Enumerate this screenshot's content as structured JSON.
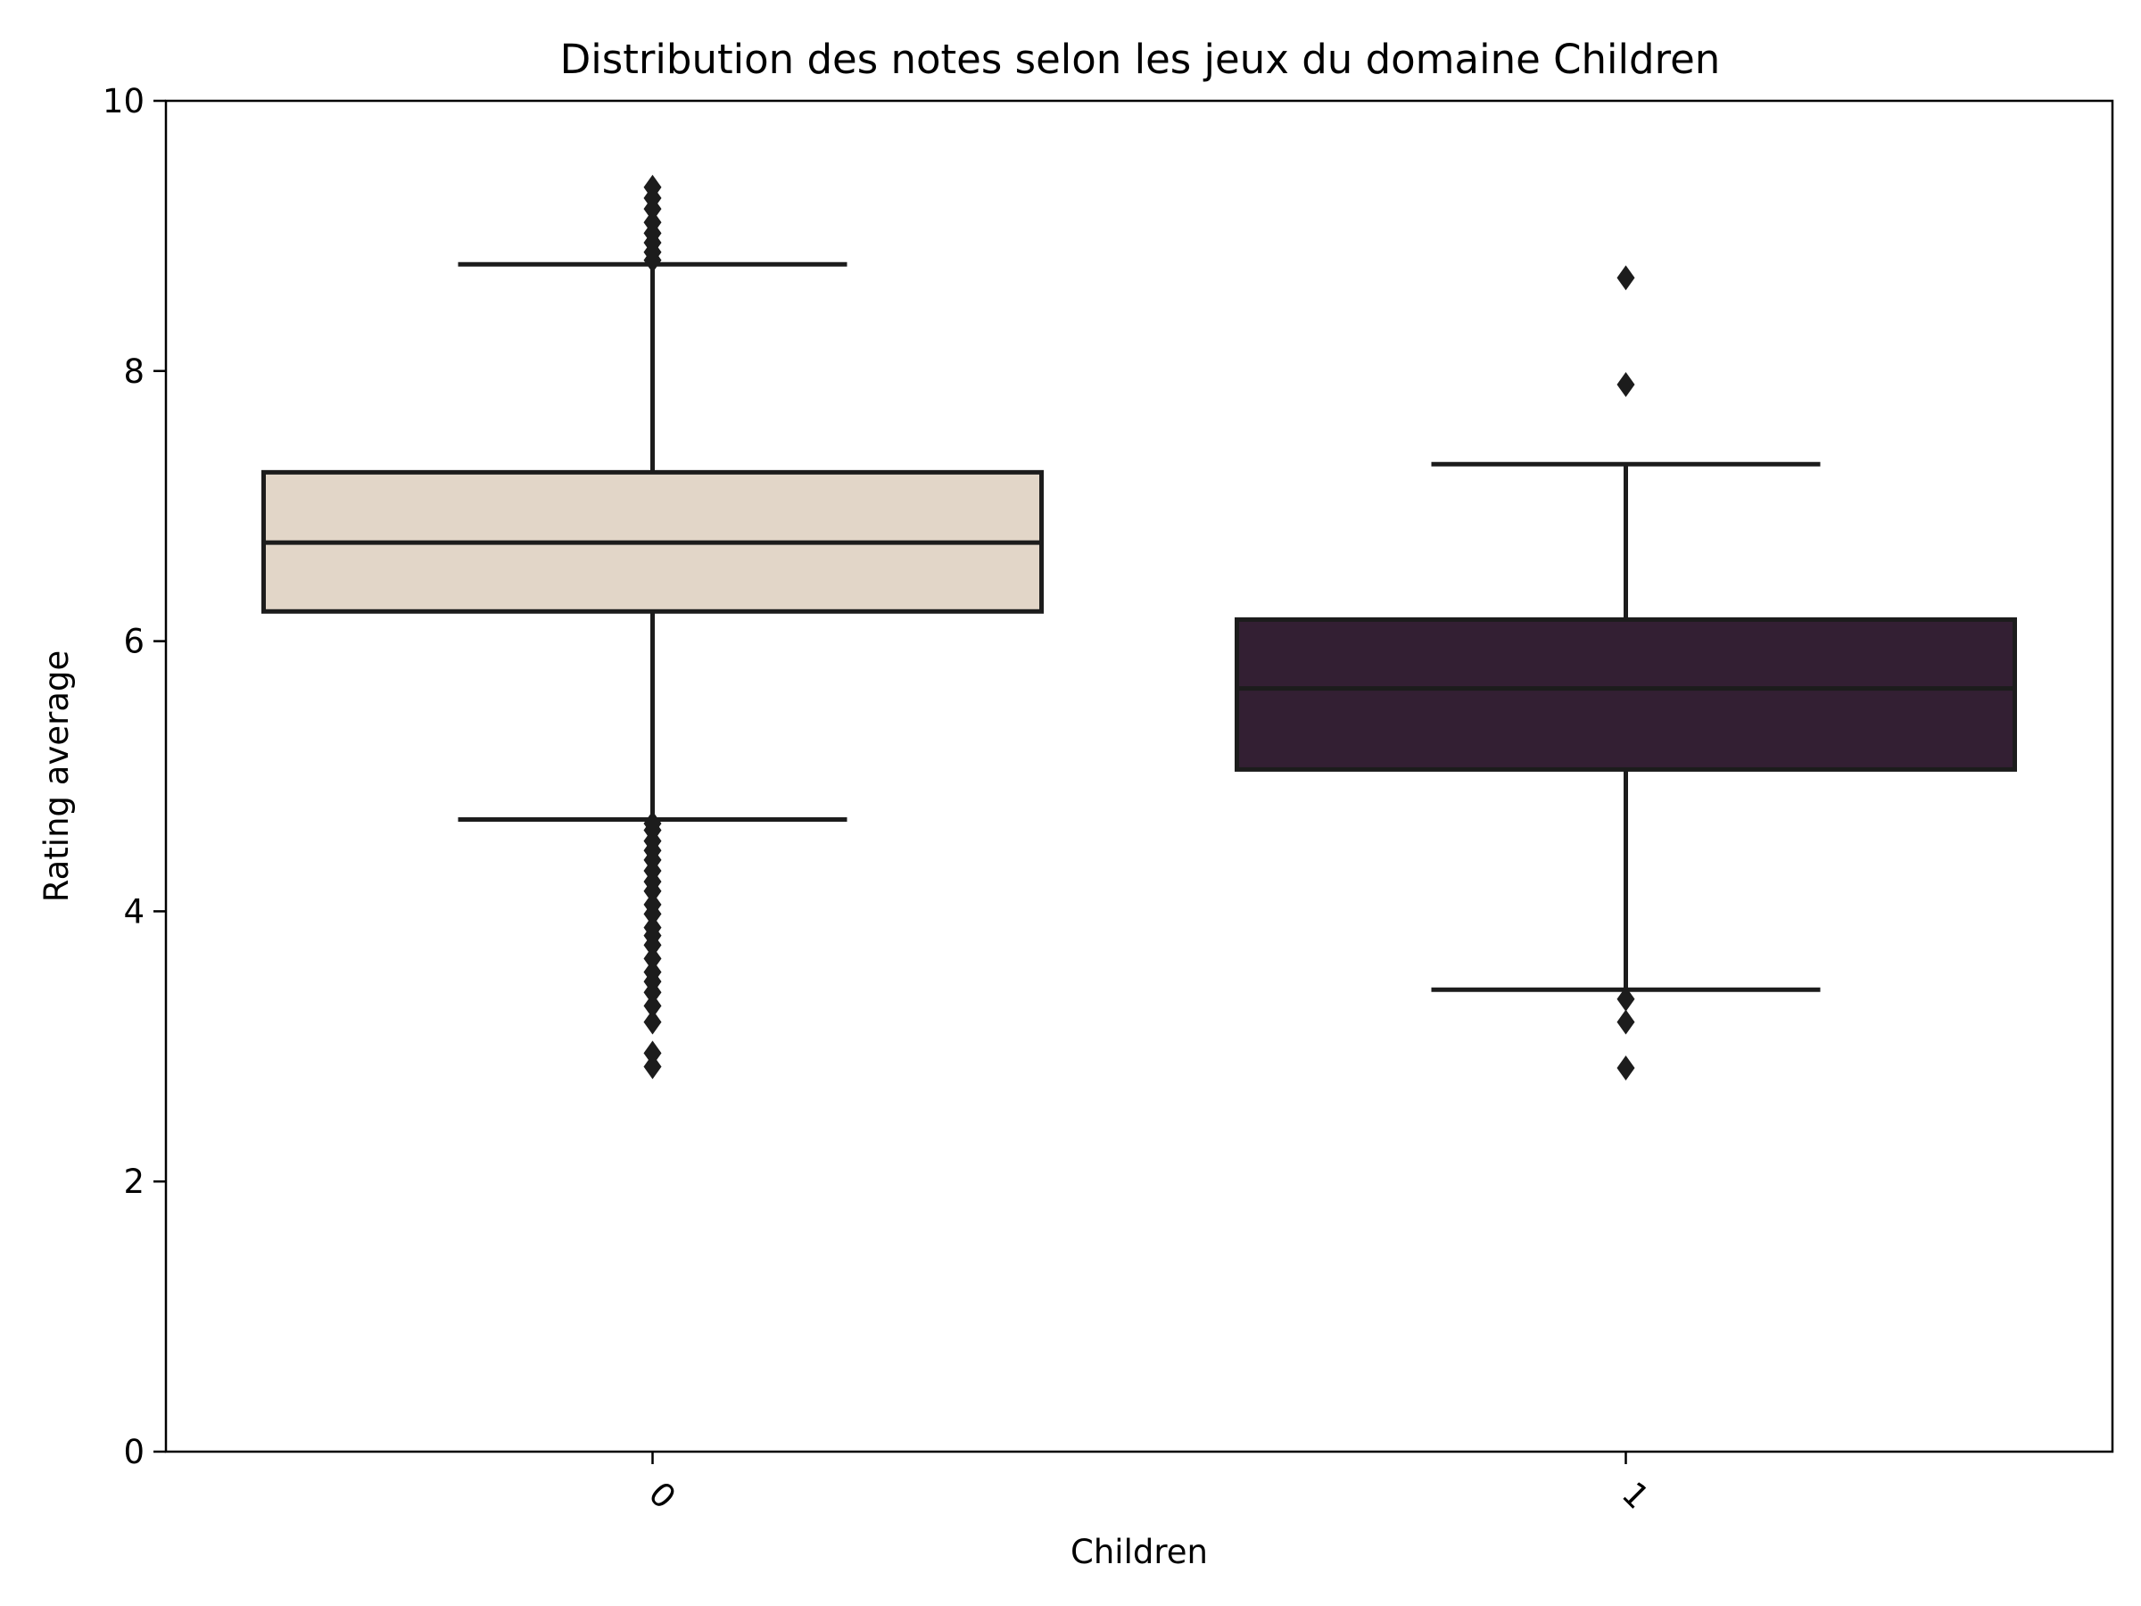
{
  "chart_data": {
    "type": "box",
    "title": "Distribution des notes selon les jeux du domaine Children",
    "xlabel": "Children",
    "ylabel": "Rating average",
    "ylim": [
      0,
      10
    ],
    "y_ticks": [
      0,
      2,
      4,
      6,
      8,
      10
    ],
    "y_tick_labels": [
      "0",
      "2",
      "4",
      "6",
      "8",
      "10"
    ],
    "x_tick_rotation_deg": 45,
    "grid": false,
    "legend": false,
    "categories": [
      "0",
      "1"
    ],
    "boxes": [
      {
        "category": "0",
        "color": "#e2d6c8",
        "whisker_low": 4.68,
        "q1": 6.22,
        "median": 6.73,
        "q3": 7.25,
        "whisker_high": 8.79,
        "outliers": [
          2.85,
          2.95,
          3.18,
          3.3,
          3.4,
          3.48,
          3.55,
          3.65,
          3.75,
          3.82,
          3.88,
          3.98,
          4.05,
          4.15,
          4.22,
          4.3,
          4.38,
          4.45,
          4.52,
          4.6,
          4.65,
          8.82,
          8.88,
          8.95,
          9.02,
          9.1,
          9.2,
          9.28,
          9.36
        ]
      },
      {
        "category": "1",
        "color": "#331f33",
        "whisker_low": 3.42,
        "q1": 5.05,
        "median": 5.65,
        "q3": 6.16,
        "whisker_high": 7.31,
        "outliers": [
          2.84,
          3.18,
          3.35,
          7.9,
          8.69
        ]
      }
    ]
  }
}
